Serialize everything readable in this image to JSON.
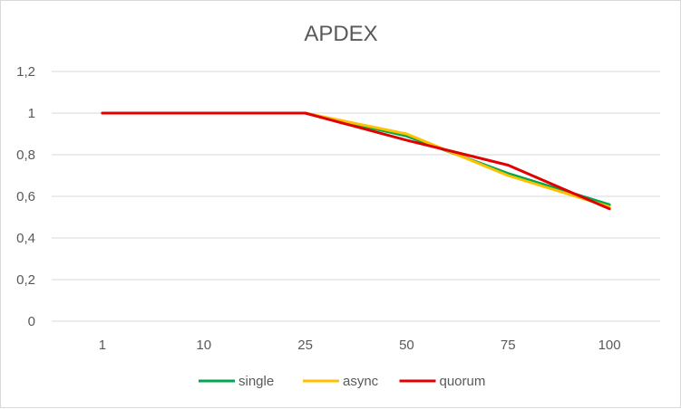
{
  "chart_data": {
    "type": "line",
    "title": "APDEX",
    "categories": [
      "1",
      "10",
      "25",
      "50",
      "75",
      "100"
    ],
    "y_ticks": [
      "0",
      "0,2",
      "0,4",
      "0,6",
      "0,8",
      "1",
      "1,2"
    ],
    "ylim": [
      0,
      1.2
    ],
    "grid": true,
    "legend_position": "bottom",
    "series": [
      {
        "name": "single",
        "color": "#00a650",
        "values": [
          1,
          1,
          1,
          0.89,
          0.71,
          0.56
        ]
      },
      {
        "name": "async",
        "color": "#ffc000",
        "values": [
          1,
          1,
          1,
          0.9,
          0.7,
          0.55
        ]
      },
      {
        "name": "quorum",
        "color": "#e00000",
        "values": [
          1,
          1,
          1,
          0.87,
          0.75,
          0.54
        ]
      }
    ]
  }
}
